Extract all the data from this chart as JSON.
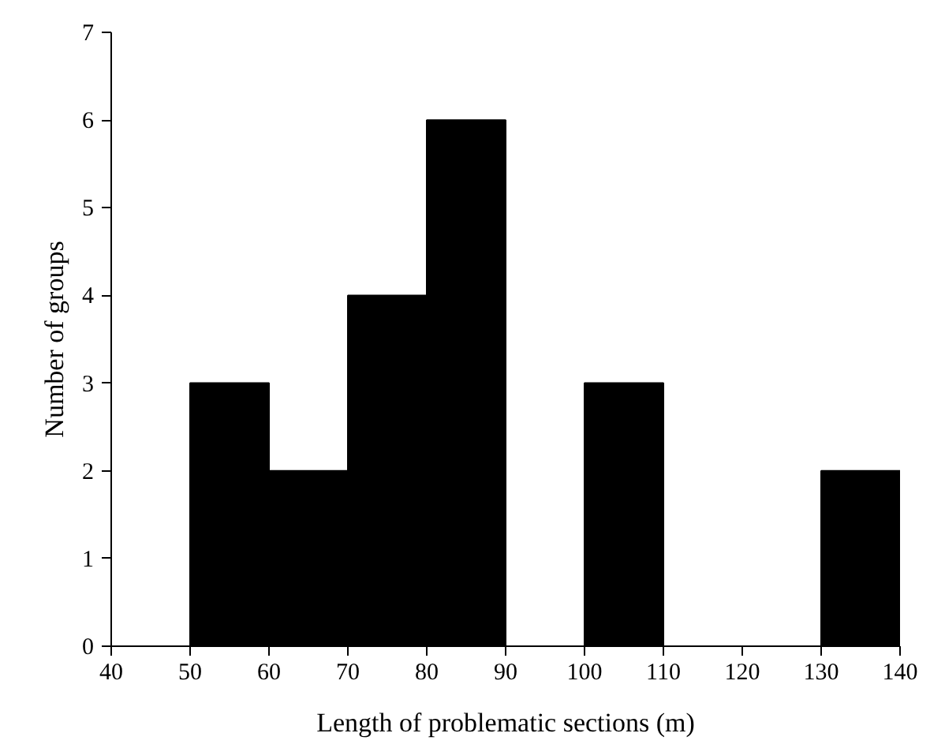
{
  "chart_data": {
    "type": "histogram",
    "xlabel": "Length of problematic sections (m)",
    "ylabel": "Number of groups",
    "bins": [
      50,
      60,
      70,
      80,
      90,
      100,
      110,
      120,
      130,
      140
    ],
    "values": [
      3,
      2,
      4,
      6,
      0,
      3,
      0,
      0,
      2
    ],
    "color": "#000000",
    "xlim": [
      40,
      140
    ],
    "xticks": [
      40,
      50,
      60,
      70,
      80,
      90,
      100,
      110,
      120,
      130,
      140
    ],
    "ylim": [
      0,
      7
    ],
    "yticks": [
      0,
      1,
      2,
      3,
      4,
      5,
      6,
      7
    ],
    "grid": false
  }
}
